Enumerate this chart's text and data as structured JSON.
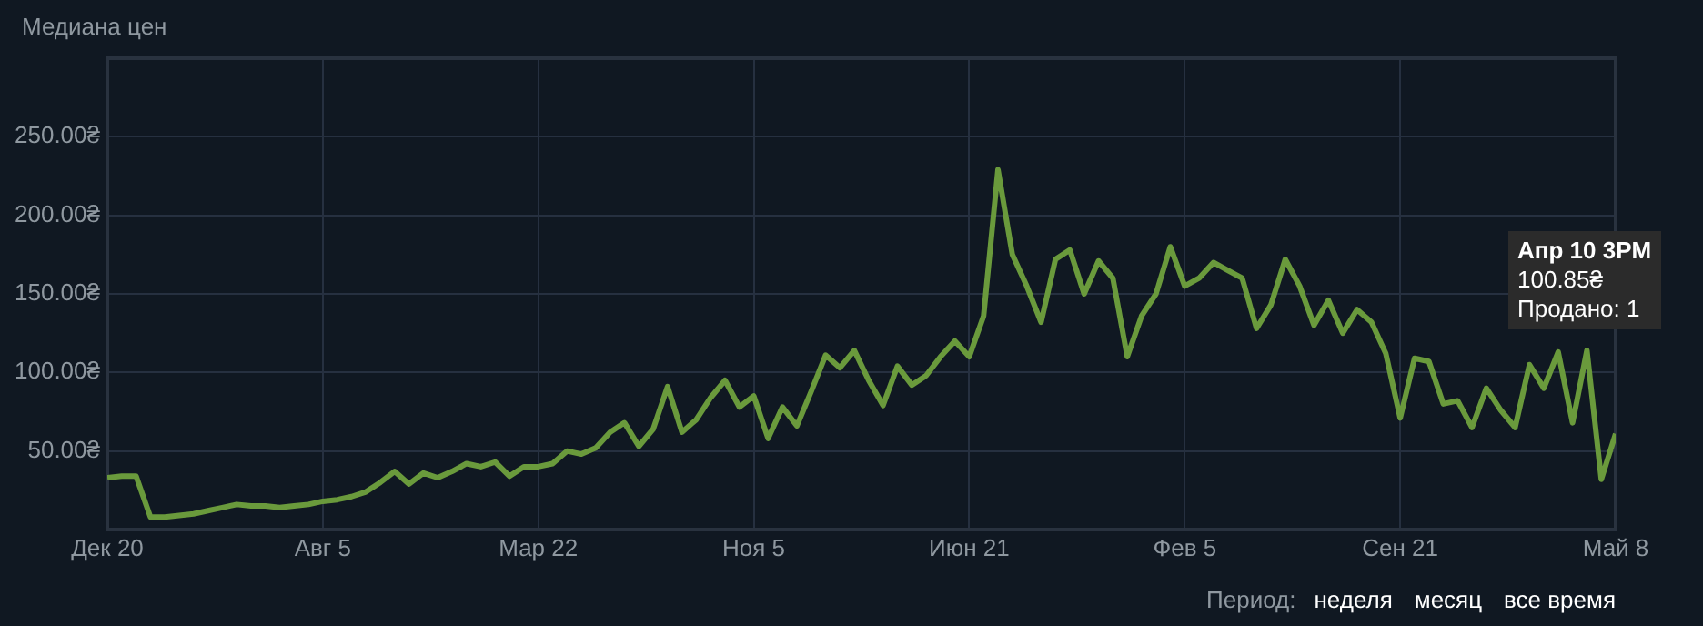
{
  "chart_data": {
    "type": "line",
    "title": "Медиана цен",
    "color": "#6a9a3c",
    "grid": true,
    "categories": [
      "Дек 20",
      null,
      null,
      null,
      null,
      null,
      null,
      null,
      null,
      null,
      null,
      null,
      null,
      null,
      null,
      "Авг 5",
      null,
      null,
      null,
      null,
      null,
      null,
      null,
      null,
      null,
      null,
      null,
      null,
      null,
      null,
      "Мар 22",
      null,
      null,
      null,
      null,
      null,
      null,
      null,
      null,
      null,
      null,
      null,
      null,
      null,
      null,
      "Ноя 5",
      null,
      null,
      null,
      null,
      null,
      null,
      null,
      null,
      null,
      null,
      null,
      null,
      null,
      null,
      "Июн 21",
      null,
      null,
      null,
      null,
      null,
      null,
      null,
      null,
      null,
      null,
      null,
      null,
      null,
      null,
      "Фев 5",
      null,
      null,
      null,
      null,
      null,
      null,
      null,
      null,
      null,
      null,
      null,
      null,
      null,
      null,
      "Сен 21",
      null,
      null,
      null,
      null,
      null,
      null,
      null,
      null,
      null,
      null,
      null,
      null,
      null,
      null,
      "Май 8"
    ],
    "ylim": [
      0,
      300
    ],
    "yticks": [
      {
        "value": 50,
        "label": "50.00₴"
      },
      {
        "value": 100,
        "label": "100.00₴"
      },
      {
        "value": 150,
        "label": "150.00₴"
      },
      {
        "value": 200,
        "label": "200.00₴"
      },
      {
        "value": 250,
        "label": "250.00₴"
      }
    ],
    "values": [
      33,
      34,
      34,
      8,
      8,
      9,
      10,
      12,
      14,
      16,
      15,
      15,
      14,
      15,
      16,
      18,
      19,
      21,
      24,
      30,
      37,
      29,
      36,
      33,
      37,
      42,
      40,
      43,
      34,
      40,
      40,
      42,
      50,
      48,
      52,
      62,
      68,
      53,
      64,
      91,
      62,
      70,
      84,
      95,
      78,
      85,
      58,
      78,
      66,
      88,
      111,
      103,
      114,
      95,
      79,
      104,
      92,
      98,
      110,
      120,
      110,
      136,
      229,
      175,
      155,
      132,
      172,
      178,
      150,
      171,
      160,
      110,
      136,
      150,
      180,
      155,
      160,
      170,
      165,
      160,
      128,
      143,
      172,
      155,
      130,
      146,
      125,
      140,
      132,
      112,
      71,
      109,
      107,
      80,
      82,
      65,
      90,
      76,
      65,
      105,
      90,
      113,
      68,
      114,
      32,
      61
    ],
    "annotations": [
      "Апр 10 3PM\n100.85₴\nПродано: 1",
      "Период:",
      "неделя",
      "месяц",
      "все время"
    ]
  }
}
